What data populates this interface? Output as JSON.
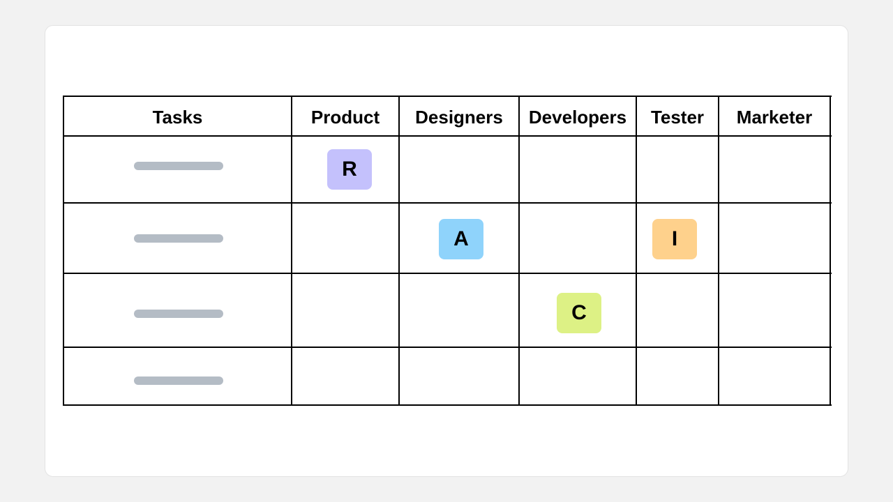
{
  "columns": {
    "tasks": "Tasks",
    "product": "Product",
    "designers": "Designers",
    "developers": "Developers",
    "tester": "Tester",
    "marketer": "Marketer"
  },
  "rows": [
    {
      "task": "",
      "assignment": {
        "column": "product",
        "letter": "R"
      }
    },
    {
      "task": "",
      "assignment": [
        {
          "column": "designers",
          "letter": "A"
        },
        {
          "column": "tester",
          "letter": "I"
        }
      ]
    },
    {
      "task": "",
      "assignment": {
        "column": "developers",
        "letter": "C"
      }
    },
    {
      "task": "",
      "assignment": null
    }
  ],
  "badges": {
    "r": "R",
    "a": "A",
    "i": "I",
    "c": "C"
  },
  "colors": {
    "responsible": "#c4c1fc",
    "accountable": "#8fd3fb",
    "informed": "#fed18c",
    "consulted": "#ddf185",
    "task_placeholder": "#b4bcc5",
    "grid_line": "#000000"
  }
}
